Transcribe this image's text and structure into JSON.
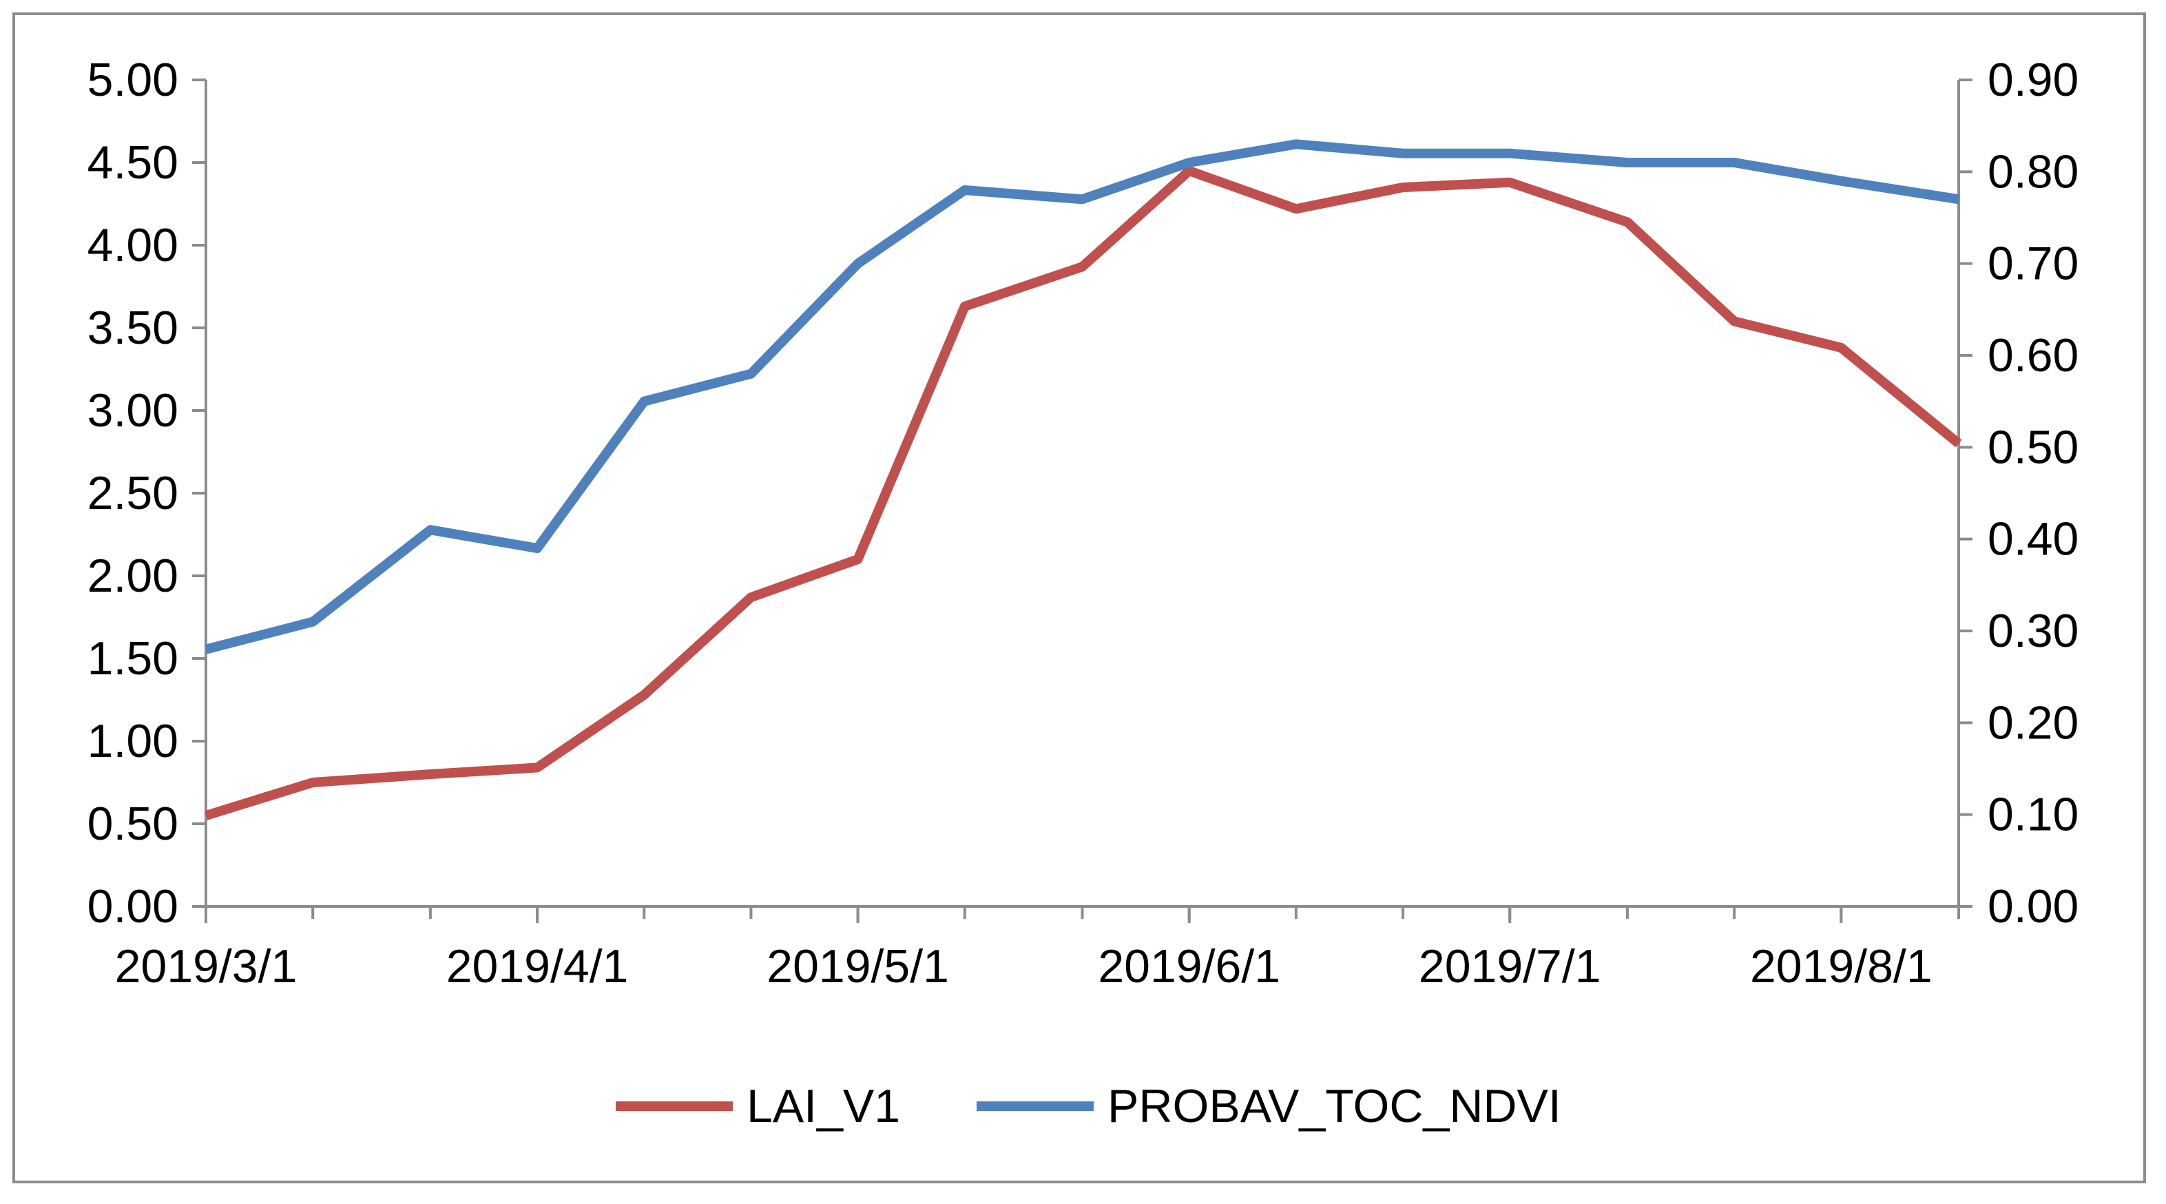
{
  "chart_data": {
    "type": "line",
    "title": "",
    "xlabel": "",
    "ylabel": "",
    "x_tick_labels": [
      "2019/3/1",
      "2019/4/1",
      "2019/5/1",
      "2019/6/1",
      "2019/7/1",
      "2019/8/1"
    ],
    "x_tick_values": [
      0,
      31,
      61,
      92,
      122,
      153
    ],
    "x_minor_ticks": [
      0,
      10,
      21,
      31,
      41,
      51,
      61,
      71,
      82,
      92,
      102,
      112,
      122,
      133,
      143,
      153,
      164
    ],
    "xlim": [
      0,
      164
    ],
    "y_left": {
      "ylim": [
        0,
        5
      ],
      "ticks": [
        "0.00",
        "0.50",
        "1.00",
        "1.50",
        "2.00",
        "2.50",
        "3.00",
        "3.50",
        "4.00",
        "4.50",
        "5.00"
      ]
    },
    "y_right": {
      "ylim": [
        0,
        0.9
      ],
      "ticks": [
        "0.00",
        "0.10",
        "0.20",
        "0.30",
        "0.40",
        "0.50",
        "0.60",
        "0.70",
        "0.80",
        "0.90"
      ]
    },
    "series": [
      {
        "name": "LAI_V1",
        "axis": "left",
        "color": "#C0504D",
        "x": [
          0,
          10,
          21,
          31,
          41,
          51,
          61,
          71,
          82,
          92,
          102,
          112,
          122,
          133,
          143,
          153,
          164
        ],
        "values": [
          0.55,
          0.75,
          0.8,
          0.84,
          1.28,
          1.87,
          2.1,
          3.63,
          3.87,
          4.45,
          4.22,
          4.35,
          4.38,
          4.14,
          3.54,
          3.38,
          2.8
        ]
      },
      {
        "name": "PROBAV_TOC_NDVI",
        "axis": "right",
        "color": "#4F81BD",
        "x": [
          0,
          10,
          21,
          31,
          41,
          51,
          61,
          71,
          82,
          92,
          102,
          112,
          122,
          133,
          143,
          153,
          164
        ],
        "values": [
          0.28,
          0.31,
          0.41,
          0.39,
          0.55,
          0.58,
          0.7,
          0.78,
          0.77,
          0.81,
          0.83,
          0.82,
          0.82,
          0.81,
          0.81,
          0.79,
          0.77
        ]
      }
    ],
    "legend": {
      "position": "bottom",
      "entries": [
        "LAI_V1",
        "PROBAV_TOC_NDVI"
      ]
    }
  }
}
